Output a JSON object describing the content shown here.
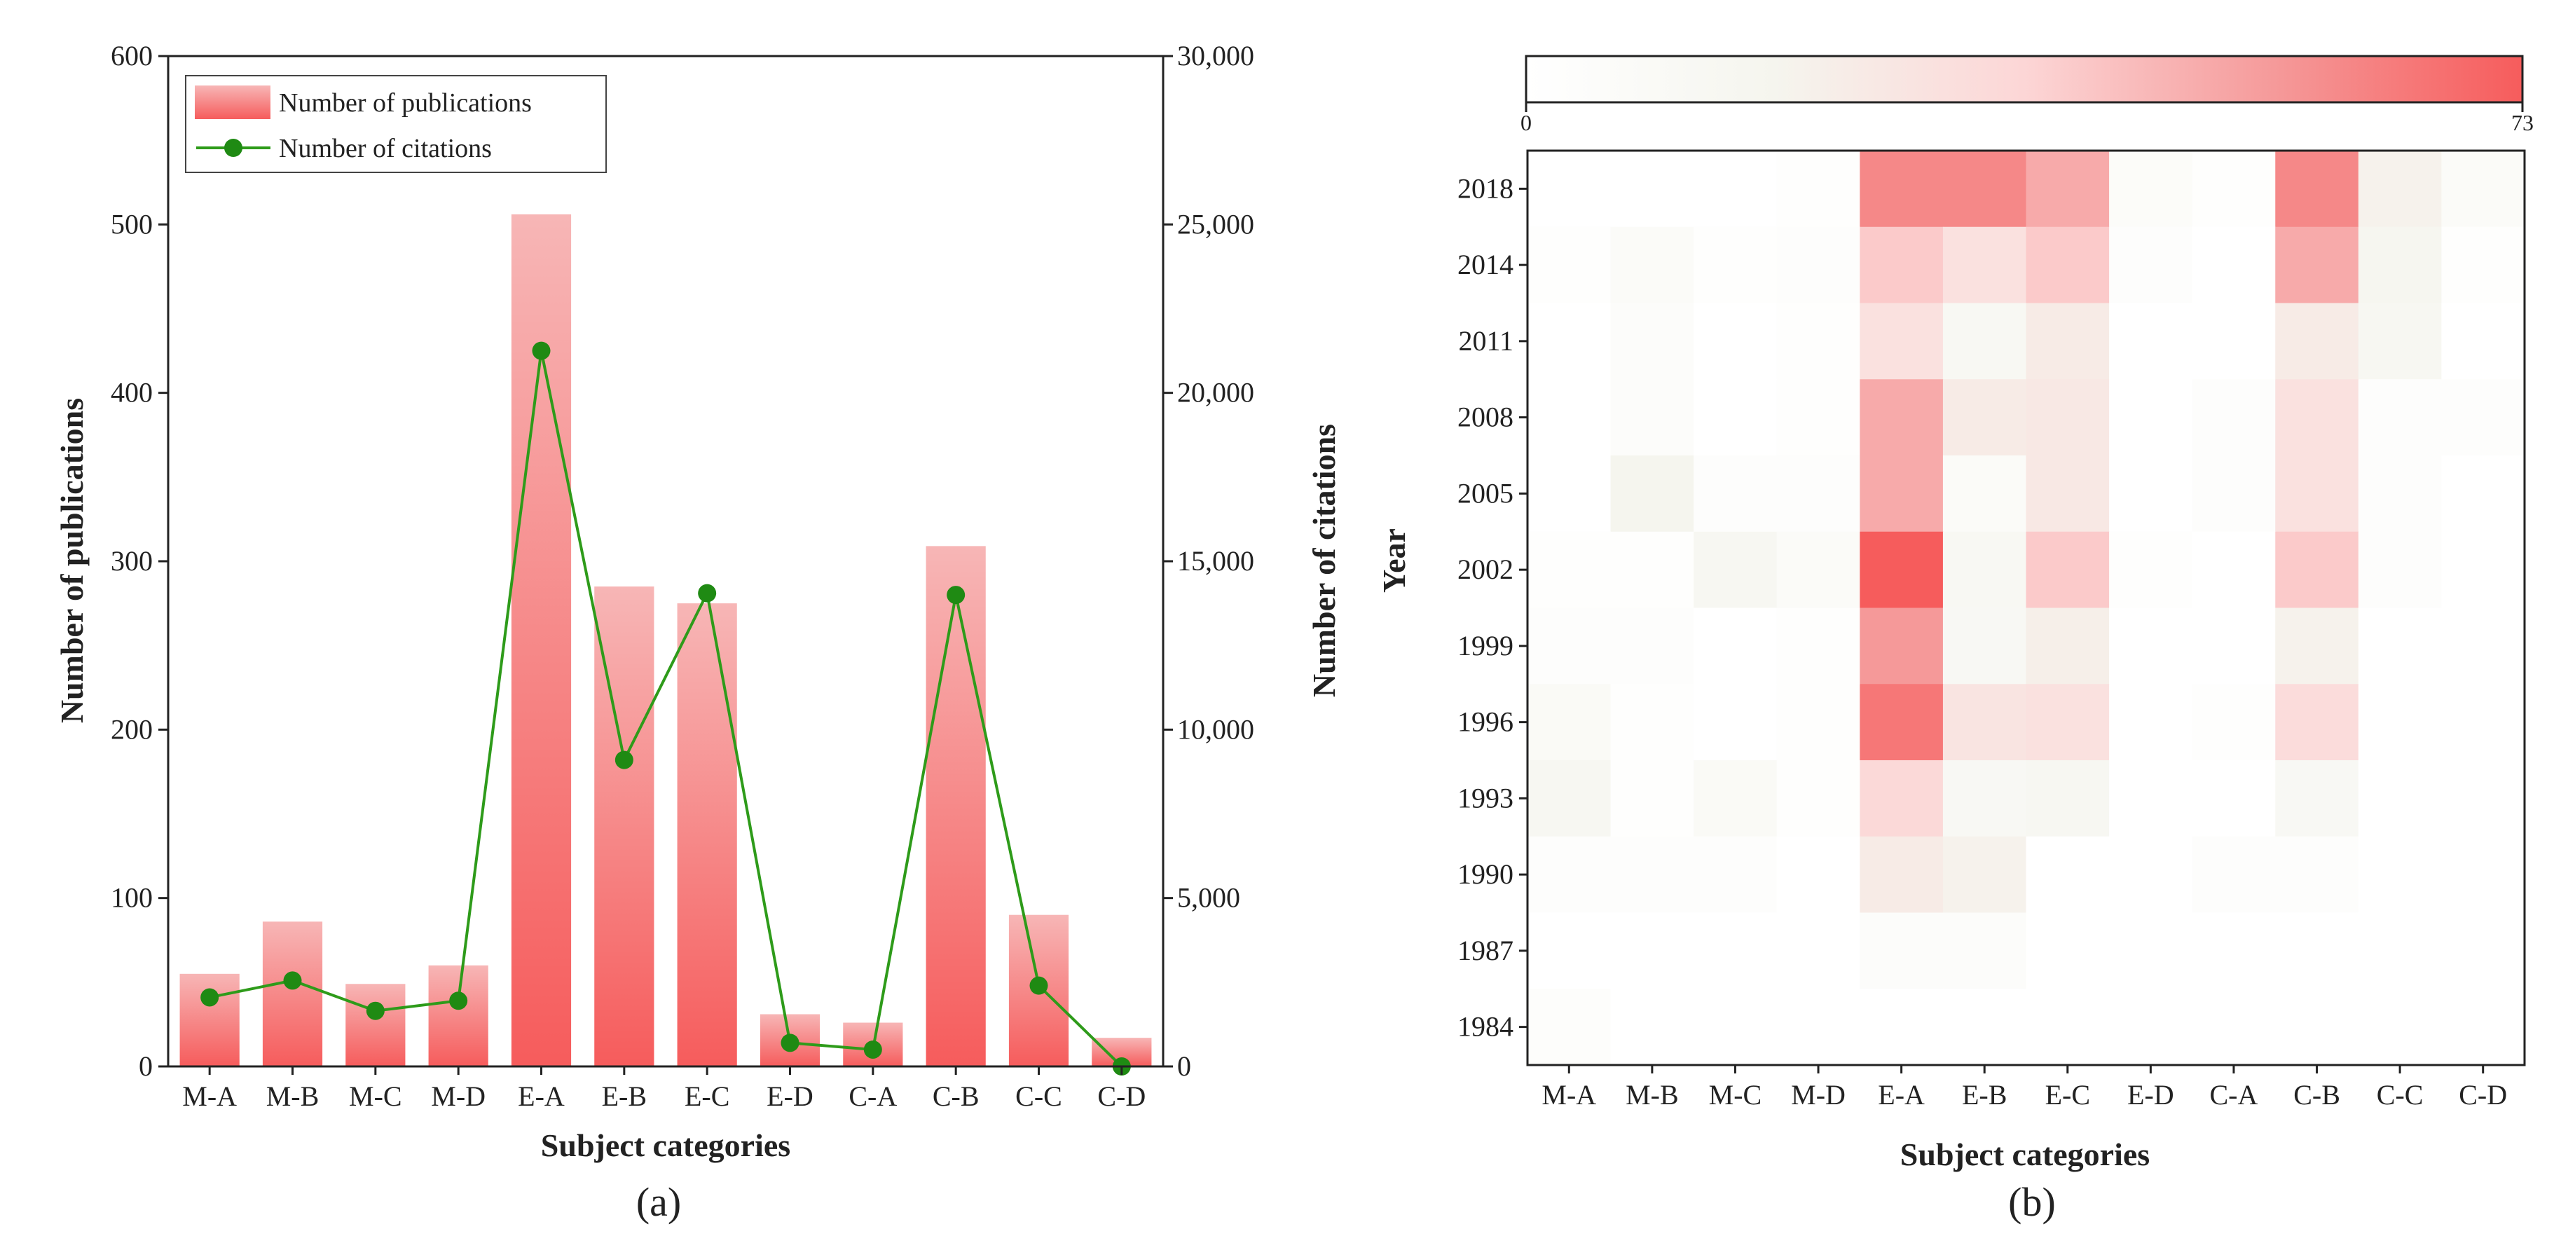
{
  "chart_data": [
    {
      "type": "bar",
      "panel_label": "(a)",
      "categories": [
        "M-A",
        "M-B",
        "M-C",
        "M-D",
        "E-A",
        "E-B",
        "E-C",
        "E-D",
        "C-A",
        "C-B",
        "C-C",
        "C-D"
      ],
      "xlabel": "Subject categories",
      "series": [
        {
          "name": "Number of publications",
          "kind": "bar",
          "axis": "left",
          "values": [
            55,
            86,
            49,
            60,
            506,
            285,
            275,
            31,
            26,
            309,
            90,
            17
          ]
        },
        {
          "name": "Number of citations",
          "kind": "line",
          "axis": "right",
          "values": [
            2050,
            2550,
            1650,
            1950,
            21250,
            9100,
            14050,
            700,
            500,
            14000,
            2400,
            0
          ]
        }
      ],
      "ylabel_left": "Number of publications",
      "ylim_left": [
        0,
        600
      ],
      "yticks_left": [
        "0",
        "100",
        "200",
        "300",
        "400",
        "500",
        "600"
      ],
      "ylabel_right": "Number of citations",
      "ylim_right": [
        0,
        30000
      ],
      "yticks_right": [
        "0",
        "5,000",
        "10,000",
        "15,000",
        "20,000",
        "25,000",
        "30,000"
      ],
      "legend": "top-left",
      "colors": {
        "bar_top": "#f7b6b6",
        "bar_bottom": "#f65c5c",
        "line": "#2e9b1a",
        "marker": "#1f8a13"
      }
    },
    {
      "type": "heatmap",
      "panel_label": "(b)",
      "xlabel": "Subject categories",
      "ylabel": "Year",
      "x_categories": [
        "M-A",
        "M-B",
        "M-C",
        "M-D",
        "E-A",
        "E-B",
        "E-C",
        "E-D",
        "C-A",
        "C-B",
        "C-C",
        "C-D"
      ],
      "y_categories": [
        "2018",
        "2014",
        "2011",
        "2008",
        "2005",
        "2002",
        "1999",
        "1996",
        "1993",
        "1990",
        "1987",
        "1984"
      ],
      "values": [
        [
          0,
          0,
          0,
          2,
          60,
          60,
          50,
          6,
          2,
          60,
          20,
          8
        ],
        [
          2,
          8,
          2,
          3,
          40,
          30,
          40,
          3,
          0,
          50,
          16,
          2
        ],
        [
          0,
          5,
          0,
          2,
          30,
          13,
          24,
          0,
          0,
          24,
          14,
          0
        ],
        [
          0,
          5,
          0,
          2,
          50,
          24,
          26,
          0,
          3,
          30,
          3,
          3
        ],
        [
          0,
          18,
          3,
          3,
          50,
          8,
          26,
          0,
          3,
          30,
          3,
          0
        ],
        [
          2,
          2,
          14,
          8,
          73,
          13,
          40,
          2,
          0,
          40,
          3,
          0
        ],
        [
          3,
          3,
          0,
          2,
          55,
          12,
          22,
          0,
          0,
          20,
          0,
          0
        ],
        [
          10,
          2,
          0,
          2,
          65,
          28,
          30,
          0,
          2,
          33,
          0,
          0
        ],
        [
          14,
          2,
          10,
          2,
          35,
          12,
          14,
          0,
          0,
          12,
          0,
          0
        ],
        [
          3,
          3,
          3,
          0,
          24,
          20,
          0,
          0,
          3,
          3,
          0,
          0
        ],
        [
          0,
          0,
          0,
          0,
          5,
          5,
          0,
          0,
          0,
          0,
          0,
          0
        ],
        [
          4,
          0,
          0,
          0,
          0,
          0,
          0,
          0,
          0,
          0,
          0,
          0
        ]
      ],
      "colorbar": {
        "min": 0,
        "max": 73,
        "min_label": "0",
        "max_label": "73",
        "colors": [
          "#ffffff",
          "#f5f5ee",
          "#fcd6d6",
          "#f59a9a",
          "#f65c5c"
        ]
      }
    }
  ]
}
